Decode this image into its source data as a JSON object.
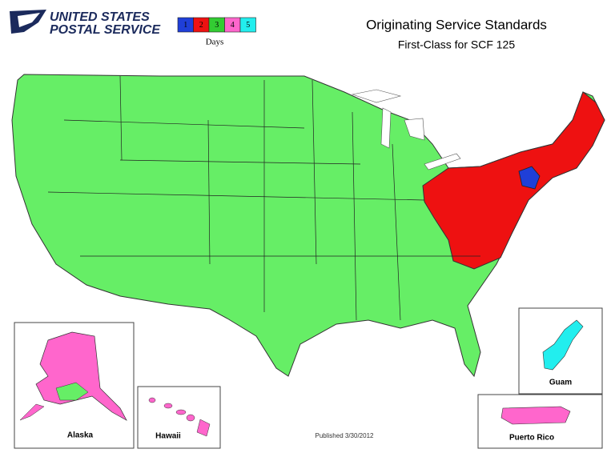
{
  "header": {
    "logo": [
      "UNITED STATES",
      "POSTAL SERVICE"
    ],
    "title": "Originating Service Standards",
    "subtitle": "First-Class for SCF 125"
  },
  "legend": {
    "items": [
      {
        "label": "1",
        "color": "#1f3fd8"
      },
      {
        "label": "2",
        "color": "#ee1111"
      },
      {
        "label": "3",
        "color": "#33cc33"
      },
      {
        "label": "4",
        "color": "#ff66cc"
      },
      {
        "label": "5",
        "color": "#22eeee"
      }
    ],
    "caption": "Days"
  },
  "insets": {
    "alaska": "Alaska",
    "hawaii": "Hawaii",
    "guam": "Guam",
    "puerto_rico": "Puerto Rico"
  },
  "footer": {
    "published": "Published 3/30/2012"
  }
}
